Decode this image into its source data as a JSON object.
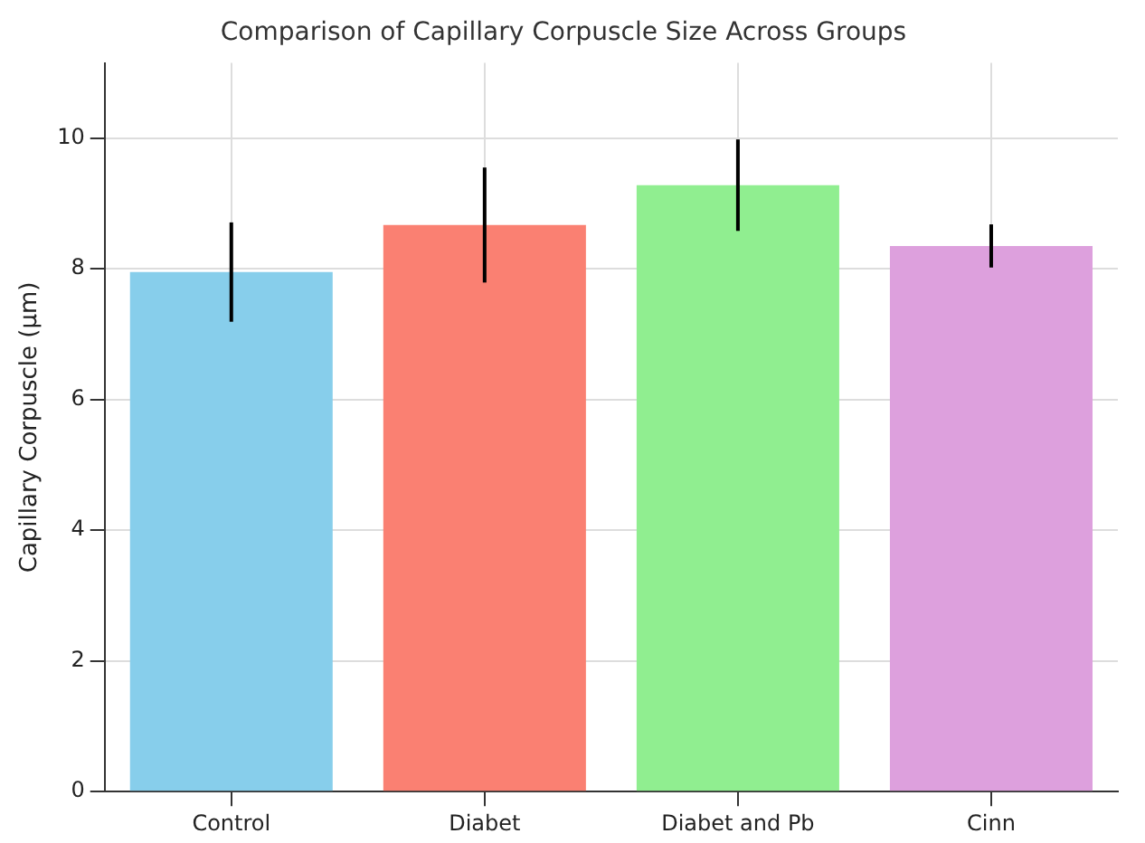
{
  "chart_data": {
    "type": "bar",
    "title": "Comparison of Capillary Corpuscle Size Across Groups",
    "ylabel": "Capillary Corpuscle (µm)",
    "categories": [
      "Control",
      "Diabet",
      "Diabet and Pb",
      "Cinn"
    ],
    "values": [
      7.95,
      8.67,
      9.28,
      8.35
    ],
    "errors": [
      0.76,
      0.88,
      0.7,
      0.33
    ],
    "colors": [
      "#87ceeb",
      "#fa8072",
      "#90ee90",
      "#dda0dd"
    ],
    "ylim": [
      0,
      11.15
    ],
    "yticks": [
      0,
      2,
      4,
      6,
      8,
      10
    ],
    "grid": true
  }
}
